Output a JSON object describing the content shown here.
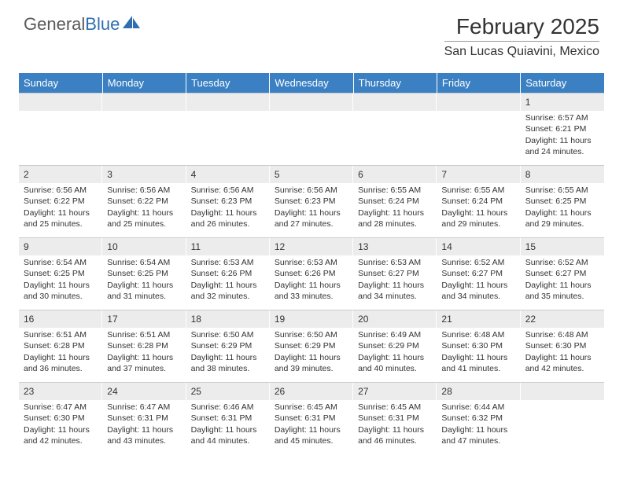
{
  "brand": {
    "general": "General",
    "blue": "Blue"
  },
  "logo_colors": {
    "general": "#5a5a5a",
    "blue": "#2f6fb0",
    "sail": "#2f6fb0"
  },
  "title": "February 2025",
  "location": "San Lucas Quiavini, Mexico",
  "weekdays": [
    "Sunday",
    "Monday",
    "Tuesday",
    "Wednesday",
    "Thursday",
    "Friday",
    "Saturday"
  ],
  "header_bg": "#3a80c3",
  "header_text_color": "#ffffff",
  "daynum_bg": "#ececec",
  "grid_border": "#cccccc",
  "body_font_size_pt": 8,
  "title_font_size_pt": 22,
  "location_font_size_pt": 12,
  "weeks": [
    [
      null,
      null,
      null,
      null,
      null,
      null,
      {
        "n": "1",
        "sunrise": "Sunrise: 6:57 AM",
        "sunset": "Sunset: 6:21 PM",
        "daylight": "Daylight: 11 hours and 24 minutes."
      }
    ],
    [
      {
        "n": "2",
        "sunrise": "Sunrise: 6:56 AM",
        "sunset": "Sunset: 6:22 PM",
        "daylight": "Daylight: 11 hours and 25 minutes."
      },
      {
        "n": "3",
        "sunrise": "Sunrise: 6:56 AM",
        "sunset": "Sunset: 6:22 PM",
        "daylight": "Daylight: 11 hours and 25 minutes."
      },
      {
        "n": "4",
        "sunrise": "Sunrise: 6:56 AM",
        "sunset": "Sunset: 6:23 PM",
        "daylight": "Daylight: 11 hours and 26 minutes."
      },
      {
        "n": "5",
        "sunrise": "Sunrise: 6:56 AM",
        "sunset": "Sunset: 6:23 PM",
        "daylight": "Daylight: 11 hours and 27 minutes."
      },
      {
        "n": "6",
        "sunrise": "Sunrise: 6:55 AM",
        "sunset": "Sunset: 6:24 PM",
        "daylight": "Daylight: 11 hours and 28 minutes."
      },
      {
        "n": "7",
        "sunrise": "Sunrise: 6:55 AM",
        "sunset": "Sunset: 6:24 PM",
        "daylight": "Daylight: 11 hours and 29 minutes."
      },
      {
        "n": "8",
        "sunrise": "Sunrise: 6:55 AM",
        "sunset": "Sunset: 6:25 PM",
        "daylight": "Daylight: 11 hours and 29 minutes."
      }
    ],
    [
      {
        "n": "9",
        "sunrise": "Sunrise: 6:54 AM",
        "sunset": "Sunset: 6:25 PM",
        "daylight": "Daylight: 11 hours and 30 minutes."
      },
      {
        "n": "10",
        "sunrise": "Sunrise: 6:54 AM",
        "sunset": "Sunset: 6:25 PM",
        "daylight": "Daylight: 11 hours and 31 minutes."
      },
      {
        "n": "11",
        "sunrise": "Sunrise: 6:53 AM",
        "sunset": "Sunset: 6:26 PM",
        "daylight": "Daylight: 11 hours and 32 minutes."
      },
      {
        "n": "12",
        "sunrise": "Sunrise: 6:53 AM",
        "sunset": "Sunset: 6:26 PM",
        "daylight": "Daylight: 11 hours and 33 minutes."
      },
      {
        "n": "13",
        "sunrise": "Sunrise: 6:53 AM",
        "sunset": "Sunset: 6:27 PM",
        "daylight": "Daylight: 11 hours and 34 minutes."
      },
      {
        "n": "14",
        "sunrise": "Sunrise: 6:52 AM",
        "sunset": "Sunset: 6:27 PM",
        "daylight": "Daylight: 11 hours and 34 minutes."
      },
      {
        "n": "15",
        "sunrise": "Sunrise: 6:52 AM",
        "sunset": "Sunset: 6:27 PM",
        "daylight": "Daylight: 11 hours and 35 minutes."
      }
    ],
    [
      {
        "n": "16",
        "sunrise": "Sunrise: 6:51 AM",
        "sunset": "Sunset: 6:28 PM",
        "daylight": "Daylight: 11 hours and 36 minutes."
      },
      {
        "n": "17",
        "sunrise": "Sunrise: 6:51 AM",
        "sunset": "Sunset: 6:28 PM",
        "daylight": "Daylight: 11 hours and 37 minutes."
      },
      {
        "n": "18",
        "sunrise": "Sunrise: 6:50 AM",
        "sunset": "Sunset: 6:29 PM",
        "daylight": "Daylight: 11 hours and 38 minutes."
      },
      {
        "n": "19",
        "sunrise": "Sunrise: 6:50 AM",
        "sunset": "Sunset: 6:29 PM",
        "daylight": "Daylight: 11 hours and 39 minutes."
      },
      {
        "n": "20",
        "sunrise": "Sunrise: 6:49 AM",
        "sunset": "Sunset: 6:29 PM",
        "daylight": "Daylight: 11 hours and 40 minutes."
      },
      {
        "n": "21",
        "sunrise": "Sunrise: 6:48 AM",
        "sunset": "Sunset: 6:30 PM",
        "daylight": "Daylight: 11 hours and 41 minutes."
      },
      {
        "n": "22",
        "sunrise": "Sunrise: 6:48 AM",
        "sunset": "Sunset: 6:30 PM",
        "daylight": "Daylight: 11 hours and 42 minutes."
      }
    ],
    [
      {
        "n": "23",
        "sunrise": "Sunrise: 6:47 AM",
        "sunset": "Sunset: 6:30 PM",
        "daylight": "Daylight: 11 hours and 42 minutes."
      },
      {
        "n": "24",
        "sunrise": "Sunrise: 6:47 AM",
        "sunset": "Sunset: 6:31 PM",
        "daylight": "Daylight: 11 hours and 43 minutes."
      },
      {
        "n": "25",
        "sunrise": "Sunrise: 6:46 AM",
        "sunset": "Sunset: 6:31 PM",
        "daylight": "Daylight: 11 hours and 44 minutes."
      },
      {
        "n": "26",
        "sunrise": "Sunrise: 6:45 AM",
        "sunset": "Sunset: 6:31 PM",
        "daylight": "Daylight: 11 hours and 45 minutes."
      },
      {
        "n": "27",
        "sunrise": "Sunrise: 6:45 AM",
        "sunset": "Sunset: 6:31 PM",
        "daylight": "Daylight: 11 hours and 46 minutes."
      },
      {
        "n": "28",
        "sunrise": "Sunrise: 6:44 AM",
        "sunset": "Sunset: 6:32 PM",
        "daylight": "Daylight: 11 hours and 47 minutes."
      },
      null
    ]
  ]
}
